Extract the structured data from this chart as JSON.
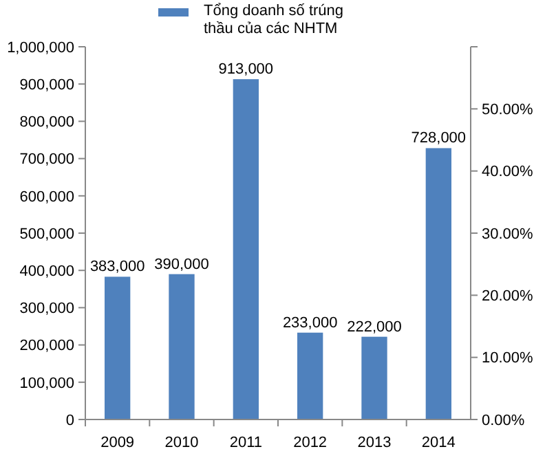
{
  "chart_data": {
    "type": "bar",
    "categories": [
      "2009",
      "2010",
      "2011",
      "2012",
      "2013",
      "2014"
    ],
    "series": [
      {
        "name": "Tổng doanh số trúng thầu của các NHTM",
        "color": "#4f81bd",
        "values": [
          383000,
          390000,
          913000,
          233000,
          222000,
          728000
        ],
        "value_labels": [
          "383,000",
          "390,000",
          "913,000",
          "233,000",
          "222,000",
          "728,000"
        ]
      }
    ],
    "legend": "top",
    "ylim": [
      0,
      1000000
    ],
    "yticks": [
      {
        "value": 0,
        "label": "0"
      },
      {
        "value": 100000,
        "label": "100,000"
      },
      {
        "value": 200000,
        "label": "200,000"
      },
      {
        "value": 300000,
        "label": "300,000"
      },
      {
        "value": 400000,
        "label": "400,000"
      },
      {
        "value": 500000,
        "label": "500,000"
      },
      {
        "value": 600000,
        "label": "600,000"
      },
      {
        "value": 700000,
        "label": "700,000"
      },
      {
        "value": 800000,
        "label": "800,000"
      },
      {
        "value": 900000,
        "label": "900,000"
      },
      {
        "value": 1000000,
        "label": "1,000,000"
      }
    ],
    "y2lim": [
      0,
      60
    ],
    "y2ticks": [
      {
        "value": 0,
        "label": "0.00%"
      },
      {
        "value": 10,
        "label": "10.00%"
      },
      {
        "value": 20,
        "label": "20.00%"
      },
      {
        "value": 30,
        "label": "30.00%"
      },
      {
        "value": 40,
        "label": "40.00%"
      },
      {
        "value": 50,
        "label": "50.00%"
      },
      {
        "value": 60,
        "label": null
      }
    ],
    "grid": false
  }
}
